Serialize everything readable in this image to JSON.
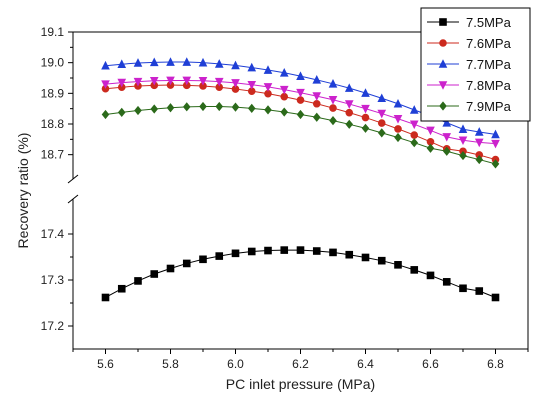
{
  "chart_data": {
    "type": "line",
    "title": "",
    "xlabel": "PC inlet pressure (MPa)",
    "ylabel": "Recovery ratio  (%)",
    "xlim": [
      5.5,
      6.9
    ],
    "xticks": [
      "5.6",
      "5.8",
      "6.0",
      "6.2",
      "6.4",
      "6.6",
      "6.8"
    ],
    "axis_break": {
      "lower_range": [
        17.15,
        17.45
      ],
      "upper_range": [
        18.65,
        19.1
      ]
    },
    "yticks_lower": [
      "17.2",
      "17.3",
      "17.4"
    ],
    "yticks_upper": [
      "18.7",
      "18.8",
      "18.9",
      "19.0",
      "19.1"
    ],
    "legend_position": "top-right",
    "x": [
      5.6,
      5.65,
      5.7,
      5.75,
      5.8,
      5.85,
      5.9,
      5.95,
      6.0,
      6.05,
      6.1,
      6.15,
      6.2,
      6.25,
      6.3,
      6.35,
      6.4,
      6.45,
      6.5,
      6.55,
      6.6,
      6.65,
      6.7,
      6.75,
      6.8
    ],
    "series": [
      {
        "name": "7.5MPa",
        "color": "#000000",
        "marker": "square",
        "values": [
          17.262,
          17.281,
          17.298,
          17.313,
          17.325,
          17.336,
          17.345,
          17.352,
          17.358,
          17.362,
          17.364,
          17.365,
          17.365,
          17.363,
          17.36,
          17.355,
          17.349,
          17.342,
          17.333,
          17.322,
          17.31,
          17.296,
          17.282,
          17.276,
          17.262
        ]
      },
      {
        "name": "7.6MPa",
        "color": "#cc2a1e",
        "marker": "circle",
        "values": [
          18.915,
          18.92,
          18.924,
          18.926,
          18.927,
          18.926,
          18.924,
          18.92,
          18.914,
          18.907,
          18.899,
          18.889,
          18.878,
          18.866,
          18.852,
          18.837,
          18.821,
          18.803,
          18.784,
          18.764,
          18.742,
          18.719,
          18.711,
          18.699,
          18.684
        ]
      },
      {
        "name": "7.7MPa",
        "color": "#1f3fd6",
        "marker": "triangle-up",
        "values": [
          18.99,
          18.995,
          18.999,
          19.001,
          19.002,
          19.002,
          19.0,
          18.996,
          18.991,
          18.984,
          18.976,
          18.967,
          18.956,
          18.944,
          18.931,
          18.917,
          18.901,
          18.884,
          18.866,
          18.846,
          18.826,
          18.804,
          18.783,
          18.774,
          18.766
        ]
      },
      {
        "name": "7.8MPa",
        "color": "#cc22cc",
        "marker": "triangle-down",
        "values": [
          18.93,
          18.935,
          18.938,
          18.941,
          18.942,
          18.942,
          18.941,
          18.938,
          18.934,
          18.928,
          18.921,
          18.912,
          18.902,
          18.891,
          18.879,
          18.865,
          18.85,
          18.834,
          18.817,
          18.799,
          18.779,
          18.758,
          18.747,
          18.74,
          18.736
        ]
      },
      {
        "name": "7.9MPa",
        "color": "#2b6a1a",
        "marker": "diamond",
        "values": [
          18.831,
          18.838,
          18.844,
          18.849,
          18.853,
          18.856,
          18.857,
          18.857,
          18.855,
          18.851,
          18.846,
          18.839,
          18.831,
          18.822,
          18.811,
          18.799,
          18.786,
          18.771,
          18.756,
          18.739,
          18.721,
          18.711,
          18.697,
          18.684,
          18.67
        ]
      }
    ]
  }
}
